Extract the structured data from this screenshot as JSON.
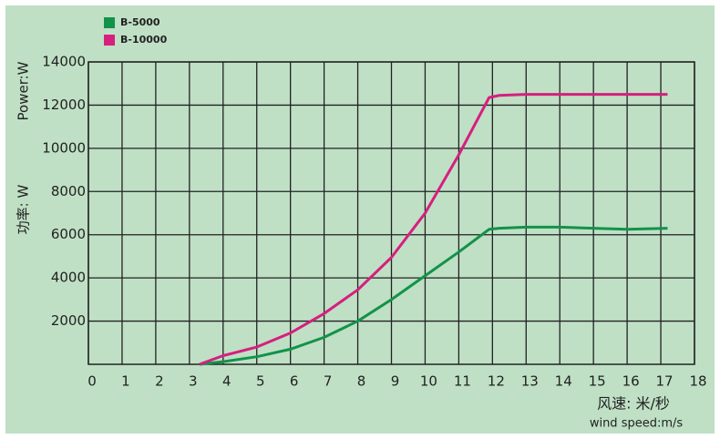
{
  "chart_data": {
    "type": "line",
    "y_label_en": "Power:W",
    "y_label_cn": "功率: W",
    "x_label_cn": "风速: 米/秒",
    "x_label_en": "wind speed:m/s",
    "x": [
      3.3,
      4,
      5,
      6,
      7,
      8,
      9,
      10,
      11,
      11.9,
      12.2,
      13,
      14,
      15,
      16,
      17.2
    ],
    "series": [
      {
        "name": "B-5000",
        "color": "#12934a",
        "values": [
          0,
          120,
          350,
          700,
          1250,
          2000,
          3000,
          4100,
          5200,
          6250,
          6300,
          6350,
          6350,
          6300,
          6250,
          6300
        ]
      },
      {
        "name": "B-10000",
        "color": "#d61f7f",
        "values": [
          0,
          400,
          800,
          1450,
          2350,
          3450,
          4950,
          7000,
          9700,
          12350,
          12450,
          12500,
          12500,
          12500,
          12500,
          12500
        ]
      }
    ],
    "xlim": [
      0,
      18
    ],
    "xticks": [
      0,
      1,
      2,
      3,
      4,
      5,
      6,
      7,
      8,
      9,
      10,
      11,
      12,
      13,
      14,
      15,
      16,
      17,
      18
    ],
    "ylim": [
      0,
      14000
    ],
    "yticks": [
      2000,
      4000,
      6000,
      8000,
      10000,
      12000,
      14000
    ],
    "grid": true
  }
}
